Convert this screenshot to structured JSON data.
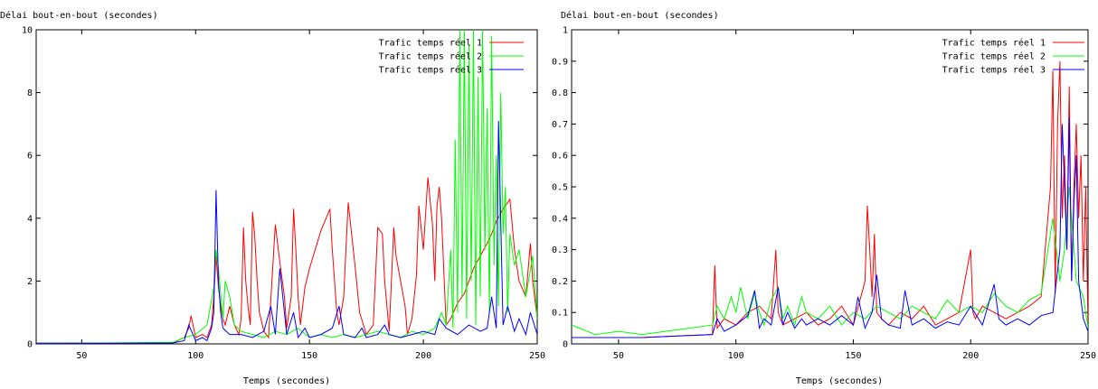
{
  "chart_data": [
    {
      "type": "line",
      "title": "",
      "ylabel": "Délai bout-en-bout (secondes)",
      "xlabel": "Temps (secondes)",
      "xlim": [
        30,
        250
      ],
      "ylim": [
        0,
        10
      ],
      "xticks": [
        50,
        100,
        150,
        200,
        250
      ],
      "yticks": [
        0,
        2,
        4,
        6,
        8,
        10
      ],
      "ytick_labels": [
        "0",
        "2",
        "4",
        "6",
        "8",
        "10"
      ],
      "grid": false,
      "legend": "top-right",
      "series": [
        {
          "name": "Trafic temps réel 1",
          "color": "#ff0000",
          "x": [
            30,
            60,
            90,
            95,
            97,
            98,
            100,
            103,
            105,
            107,
            108,
            109,
            110,
            111,
            112,
            113,
            115,
            117,
            119,
            120,
            121,
            122,
            123,
            124,
            125,
            126,
            127,
            128,
            130,
            132,
            135,
            137,
            139,
            140,
            141,
            142,
            143,
            144,
            145,
            146,
            148,
            150,
            155,
            159,
            160,
            161,
            162,
            163,
            165,
            167,
            170,
            172,
            175,
            178,
            180,
            182,
            183,
            185,
            187,
            188,
            190,
            192,
            193,
            195,
            197,
            198,
            200,
            202,
            204,
            205,
            206,
            207,
            208,
            210,
            212,
            215,
            218,
            220,
            222,
            225,
            228,
            230,
            232,
            235,
            238,
            240,
            242,
            245,
            247,
            248,
            250
          ],
          "y": [
            0.02,
            0.02,
            0.03,
            0.2,
            0.5,
            0.9,
            0.2,
            0.3,
            0.2,
            0.6,
            1.5,
            2.8,
            1.8,
            1.2,
            0.8,
            0.6,
            1.2,
            0.6,
            0.3,
            0.8,
            3.7,
            2.0,
            1.2,
            0.6,
            4.2,
            3.4,
            2.0,
            1.0,
            0.4,
            0.2,
            3.8,
            2.6,
            1.5,
            0.5,
            1.0,
            1.5,
            4.3,
            3.0,
            1.5,
            0.6,
            1.8,
            2.4,
            3.6,
            4.3,
            3.0,
            2.0,
            1.0,
            0.6,
            1.5,
            4.5,
            2.5,
            1.0,
            0.3,
            0.6,
            3.7,
            3.5,
            2.0,
            0.4,
            3.7,
            2.8,
            2.0,
            1.2,
            0.3,
            0.8,
            2.2,
            4.4,
            3.0,
            5.3,
            3.8,
            2.0,
            4.4,
            5.0,
            4.0,
            0.6,
            0.8,
            1.3,
            1.6,
            2.0,
            2.4,
            2.8,
            3.2,
            3.5,
            3.9,
            4.3,
            4.6,
            3.0,
            2.0,
            1.5,
            3.2,
            2.0,
            0.8
          ]
        },
        {
          "name": "Trafic temps réel 2",
          "color": "#00ff00",
          "x": [
            30,
            60,
            90,
            95,
            100,
            105,
            108,
            109,
            110,
            111,
            112,
            113,
            115,
            117,
            120,
            125,
            130,
            135,
            140,
            145,
            150,
            155,
            160,
            165,
            170,
            175,
            180,
            185,
            190,
            195,
            200,
            205,
            208,
            210,
            212,
            213,
            214,
            215,
            216,
            217,
            218,
            219,
            220,
            221,
            222,
            223,
            224,
            225,
            226,
            227,
            228,
            229,
            230,
            231,
            232,
            233,
            234,
            235,
            236,
            237,
            238,
            240,
            242,
            245,
            248,
            250
          ],
          "y": [
            0.02,
            0.03,
            0.05,
            0.2,
            0.3,
            0.6,
            1.8,
            3.0,
            2.4,
            1.6,
            0.8,
            2.0,
            1.5,
            0.6,
            0.4,
            0.3,
            0.2,
            0.4,
            0.3,
            0.5,
            0.2,
            0.3,
            0.2,
            0.3,
            0.2,
            0.3,
            0.4,
            0.3,
            0.2,
            0.4,
            0.3,
            0.5,
            1.0,
            0.6,
            3.0,
            0.5,
            6.5,
            1.0,
            10,
            1.5,
            10,
            0.8,
            9.5,
            2.0,
            10,
            0.6,
            8.5,
            1.5,
            10,
            3.0,
            7.5,
            1.0,
            9.8,
            2.5,
            6.0,
            1.2,
            8.0,
            3.5,
            5.0,
            1.0,
            3.5,
            2.5,
            3.0,
            1.5,
            2.8,
            0.8
          ]
        },
        {
          "name": "Trafic temps réel 3",
          "color": "#0000ff",
          "x": [
            30,
            60,
            90,
            95,
            97,
            100,
            103,
            105,
            107,
            108,
            109,
            110,
            111,
            112,
            115,
            120,
            125,
            130,
            133,
            135,
            137,
            140,
            143,
            145,
            148,
            150,
            155,
            160,
            163,
            165,
            170,
            173,
            175,
            180,
            183,
            185,
            190,
            195,
            200,
            205,
            207,
            210,
            215,
            220,
            225,
            228,
            230,
            232,
            233,
            235,
            237,
            240,
            242,
            245,
            247,
            250
          ],
          "y": [
            0.02,
            0.02,
            0.03,
            0.1,
            0.6,
            0.1,
            0.2,
            0.1,
            0.5,
            1.0,
            4.9,
            2.0,
            1.0,
            0.5,
            0.3,
            0.3,
            0.2,
            0.4,
            1.2,
            0.3,
            2.4,
            0.3,
            1.0,
            0.2,
            0.5,
            0.2,
            0.3,
            0.5,
            1.2,
            0.3,
            0.2,
            0.5,
            0.2,
            0.3,
            0.6,
            0.3,
            0.2,
            0.3,
            0.4,
            0.3,
            0.8,
            0.5,
            0.3,
            0.6,
            0.4,
            0.5,
            1.5,
            0.5,
            7.1,
            0.6,
            1.2,
            0.4,
            0.8,
            0.3,
            1.0,
            0.3
          ]
        }
      ]
    },
    {
      "type": "line",
      "title": "",
      "ylabel": "Délai bout-en-bout (secondes)",
      "xlabel": "Temps (secondes)",
      "xlim": [
        30,
        250
      ],
      "ylim": [
        0,
        1
      ],
      "xticks": [
        50,
        100,
        150,
        200,
        250
      ],
      "yticks": [
        0,
        0.1,
        0.2,
        0.3,
        0.4,
        0.5,
        0.6,
        0.7,
        0.8,
        0.9,
        1
      ],
      "ytick_labels": [
        "0",
        "0.1",
        "0.2",
        "0.3",
        "0.4",
        "0.5",
        "0.6",
        "0.7",
        "0.8",
        "0.9",
        "1"
      ],
      "grid": false,
      "legend": "top-right",
      "series": [
        {
          "name": "Trafic temps réel 1",
          "color": "#ff0000",
          "x": [
            30,
            60,
            90,
            91,
            92,
            95,
            100,
            105,
            110,
            115,
            117,
            118,
            120,
            125,
            130,
            135,
            140,
            145,
            150,
            155,
            156,
            157,
            158,
            159,
            160,
            162,
            165,
            170,
            175,
            180,
            185,
            190,
            195,
            200,
            201,
            202,
            205,
            210,
            215,
            220,
            225,
            230,
            234,
            235,
            236,
            237,
            238,
            239,
            240,
            241,
            242,
            243,
            244,
            245,
            246,
            247,
            248,
            249,
            250
          ],
          "y": [
            0.02,
            0.02,
            0.03,
            0.25,
            0.05,
            0.08,
            0.06,
            0.1,
            0.12,
            0.08,
            0.3,
            0.1,
            0.06,
            0.08,
            0.1,
            0.06,
            0.08,
            0.12,
            0.06,
            0.2,
            0.44,
            0.3,
            0.15,
            0.35,
            0.1,
            0.08,
            0.06,
            0.1,
            0.08,
            0.12,
            0.06,
            0.08,
            0.1,
            0.3,
            0.1,
            0.08,
            0.12,
            0.1,
            0.08,
            0.1,
            0.12,
            0.15,
            0.5,
            0.87,
            0.16,
            0.7,
            0.9,
            0.4,
            0.6,
            0.3,
            0.82,
            0.2,
            0.5,
            0.7,
            0.4,
            0.6,
            0.2,
            0.5,
            0.05
          ]
        },
        {
          "name": "Trafic temps réel 2",
          "color": "#00ff00",
          "x": [
            30,
            40,
            50,
            60,
            70,
            80,
            90,
            92,
            95,
            98,
            100,
            102,
            105,
            108,
            110,
            112,
            115,
            118,
            120,
            122,
            125,
            128,
            130,
            135,
            140,
            145,
            150,
            155,
            160,
            165,
            170,
            175,
            180,
            185,
            190,
            195,
            200,
            205,
            210,
            215,
            220,
            225,
            230,
            235,
            238,
            240,
            242,
            245,
            248,
            250
          ],
          "y": [
            0.06,
            0.03,
            0.04,
            0.03,
            0.04,
            0.05,
            0.06,
            0.12,
            0.08,
            0.15,
            0.1,
            0.18,
            0.08,
            0.16,
            0.1,
            0.06,
            0.14,
            0.18,
            0.08,
            0.12,
            0.06,
            0.15,
            0.1,
            0.08,
            0.12,
            0.06,
            0.1,
            0.08,
            0.12,
            0.1,
            0.08,
            0.12,
            0.1,
            0.08,
            0.14,
            0.1,
            0.12,
            0.1,
            0.16,
            0.12,
            0.1,
            0.14,
            0.16,
            0.4,
            0.2,
            0.3,
            0.5,
            0.2,
            0.15,
            0.05
          ]
        },
        {
          "name": "Trafic temps réel 3",
          "color": "#0000ff",
          "x": [
            30,
            60,
            90,
            92,
            95,
            100,
            105,
            108,
            110,
            112,
            115,
            118,
            120,
            122,
            125,
            128,
            130,
            135,
            140,
            145,
            150,
            152,
            155,
            158,
            160,
            162,
            165,
            170,
            172,
            175,
            180,
            185,
            190,
            195,
            200,
            205,
            210,
            212,
            215,
            220,
            225,
            230,
            235,
            238,
            239,
            240,
            241,
            242,
            243,
            244,
            245,
            246,
            248,
            250
          ],
          "y": [
            0.02,
            0.02,
            0.03,
            0.08,
            0.04,
            0.06,
            0.09,
            0.17,
            0.05,
            0.08,
            0.06,
            0.18,
            0.06,
            0.1,
            0.05,
            0.08,
            0.06,
            0.08,
            0.06,
            0.09,
            0.06,
            0.15,
            0.05,
            0.1,
            0.22,
            0.08,
            0.06,
            0.05,
            0.17,
            0.06,
            0.08,
            0.05,
            0.07,
            0.06,
            0.12,
            0.06,
            0.19,
            0.08,
            0.06,
            0.08,
            0.06,
            0.09,
            0.1,
            0.3,
            0.7,
            0.5,
            0.3,
            0.72,
            0.2,
            0.45,
            0.6,
            0.2,
            0.08,
            0.04
          ]
        }
      ]
    }
  ]
}
